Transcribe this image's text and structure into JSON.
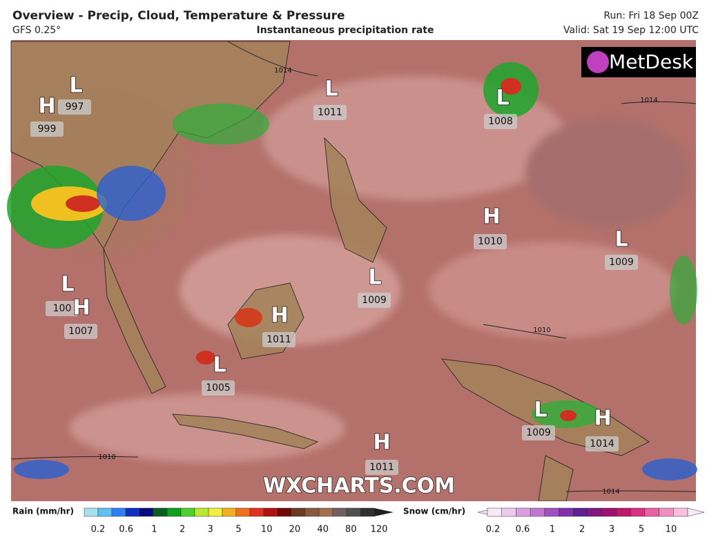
{
  "header": {
    "title": "Overview - Precip, Cloud, Temperature & Pressure",
    "model": "GFS 0.25°",
    "subtitle": "Instantaneous precipitation rate",
    "run": "Run: Fri 18 Sep 00Z",
    "valid": "Valid: Sat 19 Sep 12:00 UTC"
  },
  "logo": "MetDesk",
  "watermark": "WXCHARTS.COM",
  "pressure_systems": [
    {
      "symbol": "L",
      "value": "997"
    },
    {
      "symbol": "H",
      "value": "999"
    },
    {
      "symbol": "L",
      "value": "1011"
    },
    {
      "symbol": "L",
      "value": "1008"
    },
    {
      "symbol": "H",
      "value": "1010"
    },
    {
      "symbol": "L",
      "value": "1009"
    },
    {
      "symbol": "L",
      "value": "100"
    },
    {
      "symbol": "H",
      "value": "1007"
    },
    {
      "symbol": "H",
      "value": "1011"
    },
    {
      "symbol": "L",
      "value": "1009"
    },
    {
      "symbol": "L",
      "value": "1005"
    },
    {
      "symbol": "L",
      "value": "1009"
    },
    {
      "symbol": "H",
      "value": "1014"
    },
    {
      "symbol": "H",
      "value": "1011"
    }
  ],
  "isobar_labels": [
    "1014",
    "1014",
    "1010",
    "1010",
    "1014"
  ],
  "legend": {
    "rain": {
      "title": "Rain (mm/hr)",
      "ticks": [
        "0.2",
        "0.6",
        "1",
        "2",
        "3",
        "5",
        "10",
        "20",
        "40",
        "80",
        "120"
      ]
    },
    "snow": {
      "title": "Snow (cm/hr)",
      "ticks": [
        "0.2",
        "0.6",
        "1",
        "2",
        "3",
        "5",
        "10"
      ]
    }
  }
}
